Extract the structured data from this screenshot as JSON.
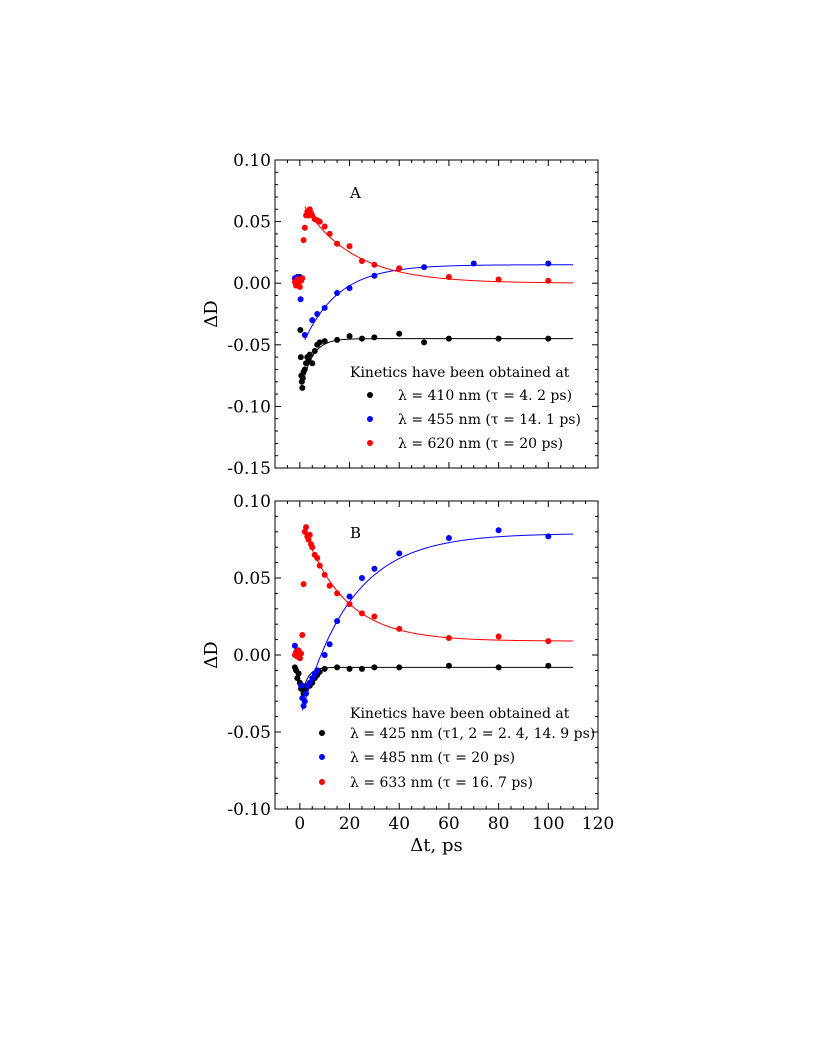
{
  "chart_data": [
    {
      "type": "scatter",
      "panel_label": "A",
      "xlim": [
        -10,
        120
      ],
      "ylim": [
        -0.15,
        0.1
      ],
      "xticks": [
        "",
        "",
        "",
        "",
        "",
        "",
        ""
      ],
      "yticks": [
        "0.10",
        "0.05",
        "0.00",
        "-0.05",
        "-0.10",
        "-0.15"
      ],
      "ylabel": "ΔD",
      "xlabel": "",
      "legend_title": "Kinetics have been obtained at",
      "legend_position": "lower-right",
      "series": [
        {
          "name": "λ = 410 nm (τ = 4. 2 ps)",
          "color": "#000000",
          "points": [
            [
              -1,
              0.005
            ],
            [
              0,
              0.005
            ],
            [
              0.2,
              -0.038
            ],
            [
              0.4,
              -0.06
            ],
            [
              0.6,
              -0.075
            ],
            [
              0.8,
              -0.08
            ],
            [
              1,
              -0.085
            ],
            [
              1.2,
              -0.077
            ],
            [
              1.5,
              -0.072
            ],
            [
              2,
              -0.07
            ],
            [
              2.5,
              -0.065
            ],
            [
              3,
              -0.06
            ],
            [
              3.5,
              -0.062
            ],
            [
              4,
              -0.058
            ],
            [
              5,
              -0.065
            ],
            [
              6,
              -0.055
            ],
            [
              7,
              -0.05
            ],
            [
              8,
              -0.048
            ],
            [
              10,
              -0.047
            ],
            [
              15,
              -0.046
            ],
            [
              20,
              -0.043
            ],
            [
              25,
              -0.045
            ],
            [
              30,
              -0.044
            ],
            [
              40,
              -0.041
            ],
            [
              50,
              -0.048
            ],
            [
              60,
              -0.045
            ],
            [
              80,
              -0.045
            ],
            [
              100,
              -0.045
            ]
          ],
          "fit": {
            "baseline": -0.045,
            "amplitude": -0.03,
            "tau": 4.2,
            "x0": 2
          }
        },
        {
          "name": "λ = 455 nm (τ = 14. 1 ps)",
          "color": "#0000ff",
          "points": [
            [
              -2,
              0.004
            ],
            [
              -1,
              0.005
            ],
            [
              0,
              0.004
            ],
            [
              0.3,
              -0.013
            ],
            [
              2,
              -0.042
            ],
            [
              5,
              -0.03
            ],
            [
              7,
              -0.025
            ],
            [
              10,
              -0.02
            ],
            [
              15,
              -0.008
            ],
            [
              20,
              -0.004
            ],
            [
              30,
              0.006
            ],
            [
              40,
              0.012
            ],
            [
              50,
              0.013
            ],
            [
              70,
              0.016
            ],
            [
              100,
              0.016
            ]
          ],
          "fit": {
            "baseline": 0.015,
            "amplitude": -0.061,
            "tau": 14.1,
            "x0": 2
          }
        },
        {
          "name": "λ = 620 nm (τ = 20 ps)",
          "color": "#ff0000",
          "points": [
            [
              -2,
              0.001
            ],
            [
              -1.5,
              -0.002
            ],
            [
              -1,
              0.003
            ],
            [
              -0.5,
              0.001
            ],
            [
              0,
              -0.003
            ],
            [
              0.5,
              0.002
            ],
            [
              1,
              0.004
            ],
            [
              1.5,
              0.035
            ],
            [
              2,
              0.045
            ],
            [
              2.5,
              0.055
            ],
            [
              3,
              0.058
            ],
            [
              3.5,
              0.055
            ],
            [
              4,
              0.06
            ],
            [
              4.5,
              0.057
            ],
            [
              5,
              0.055
            ],
            [
              6,
              0.052
            ],
            [
              7,
              0.051
            ],
            [
              8,
              0.05
            ],
            [
              10,
              0.046
            ],
            [
              12,
              0.04
            ],
            [
              15,
              0.032
            ],
            [
              20,
              0.03
            ],
            [
              25,
              0.018
            ],
            [
              30,
              0.015
            ],
            [
              40,
              0.012
            ],
            [
              60,
              0.005
            ],
            [
              80,
              0.003
            ],
            [
              100,
              0.002
            ]
          ],
          "fit": {
            "baseline": 0.0,
            "amplitude": 0.062,
            "tau": 20,
            "x0": 2
          }
        }
      ]
    },
    {
      "type": "scatter",
      "panel_label": "B",
      "xlim": [
        -10,
        120
      ],
      "ylim": [
        -0.1,
        0.1
      ],
      "xticks": [
        "0",
        "20",
        "40",
        "60",
        "80",
        "100",
        "120"
      ],
      "yticks": [
        "0.10",
        "0.05",
        "0.00",
        "-0.05",
        "-0.10"
      ],
      "ylabel": "ΔD",
      "xlabel": "Δt, ps",
      "legend_title": "Kinetics have been obtained at",
      "legend_position": "lower-right",
      "series": [
        {
          "name": "λ = 425 nm (τ1, 2 = 2. 4, 14. 9 ps)",
          "color": "#000000",
          "points": [
            [
              -2,
              -0.008
            ],
            [
              -1.5,
              -0.01
            ],
            [
              -1,
              -0.015
            ],
            [
              -0.5,
              -0.012
            ],
            [
              0,
              -0.018
            ],
            [
              0.5,
              -0.022
            ],
            [
              1,
              -0.02
            ],
            [
              1.5,
              -0.025
            ],
            [
              2,
              -0.024
            ],
            [
              2.5,
              -0.022
            ],
            [
              3,
              -0.02
            ],
            [
              4,
              -0.02
            ],
            [
              5,
              -0.018
            ],
            [
              6,
              -0.015
            ],
            [
              7,
              -0.013
            ],
            [
              8,
              -0.011
            ],
            [
              10,
              -0.009
            ],
            [
              15,
              -0.008
            ],
            [
              20,
              -0.009
            ],
            [
              25,
              -0.009
            ],
            [
              30,
              -0.008
            ],
            [
              40,
              -0.008
            ],
            [
              60,
              -0.007
            ],
            [
              80,
              -0.008
            ],
            [
              100,
              -0.007
            ]
          ],
          "fit": {
            "baseline": -0.008,
            "amplitude": -0.017,
            "tau": 2.4,
            "x0": 1
          }
        },
        {
          "name": "λ = 485 nm (τ = 20 ps)",
          "color": "#0000ff",
          "points": [
            [
              -2,
              0.006
            ],
            [
              -1,
              0.003
            ],
            [
              0,
              -0.002
            ],
            [
              0.5,
              -0.02
            ],
            [
              1,
              -0.028
            ],
            [
              1.5,
              -0.033
            ],
            [
              2,
              -0.03
            ],
            [
              2.5,
              -0.025
            ],
            [
              3,
              -0.02
            ],
            [
              4,
              -0.018
            ],
            [
              5,
              -0.015
            ],
            [
              6,
              -0.012
            ],
            [
              7,
              -0.01
            ],
            [
              10,
              0.0
            ],
            [
              12,
              0.007
            ],
            [
              15,
              0.022
            ],
            [
              20,
              0.038
            ],
            [
              25,
              0.05
            ],
            [
              30,
              0.056
            ],
            [
              40,
              0.066
            ],
            [
              60,
              0.076
            ],
            [
              80,
              0.081
            ],
            [
              100,
              0.077
            ]
          ],
          "fit": {
            "baseline": 0.079,
            "amplitude": -0.115,
            "tau": 20,
            "x0": 1
          }
        },
        {
          "name": "λ = 633 nm (τ = 16. 7 ps)",
          "color": "#ff0000",
          "points": [
            [
              -2,
              0.0
            ],
            [
              -1.5,
              0.002
            ],
            [
              -1,
              -0.001
            ],
            [
              -0.5,
              0.003
            ],
            [
              0,
              -0.002
            ],
            [
              0.5,
              0.001
            ],
            [
              1,
              0.013
            ],
            [
              1.5,
              0.046
            ],
            [
              2,
              0.08
            ],
            [
              2.5,
              0.083
            ],
            [
              3,
              0.077
            ],
            [
              3.5,
              0.075
            ],
            [
              4,
              0.078
            ],
            [
              4.5,
              0.072
            ],
            [
              5,
              0.07
            ],
            [
              6,
              0.065
            ],
            [
              7,
              0.063
            ],
            [
              8,
              0.058
            ],
            [
              10,
              0.052
            ],
            [
              12,
              0.045
            ],
            [
              15,
              0.04
            ],
            [
              20,
              0.033
            ],
            [
              25,
              0.027
            ],
            [
              30,
              0.025
            ],
            [
              40,
              0.017
            ],
            [
              60,
              0.011
            ],
            [
              80,
              0.012
            ],
            [
              100,
              0.009
            ]
          ],
          "fit": {
            "baseline": 0.009,
            "amplitude": 0.071,
            "tau": 16.7,
            "x0": 2
          }
        }
      ]
    }
  ]
}
